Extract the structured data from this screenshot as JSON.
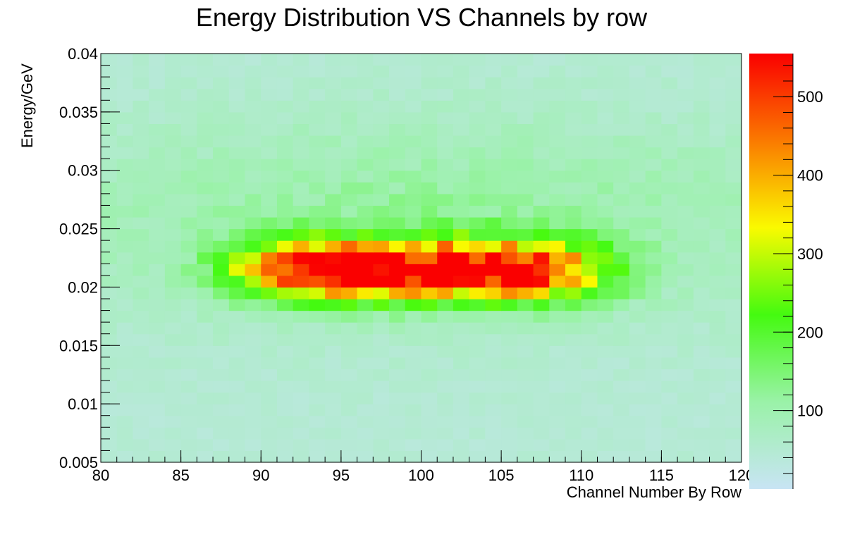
{
  "chart_data": {
    "type": "heatmap",
    "title": "Energy Distribution VS Channels by row",
    "xlabel": "Channel Number By Row",
    "ylabel": "Energy/GeV",
    "xlim": [
      80,
      120
    ],
    "ylim": [
      0.005,
      0.04
    ],
    "x_bins": 40,
    "y_bins": 35,
    "x_ticks": [
      "80",
      "85",
      "90",
      "95",
      "100",
      "105",
      "110",
      "115",
      "120"
    ],
    "y_ticks": [
      "0.005",
      "0.01",
      "0.015",
      "0.02",
      "0.025",
      "0.03",
      "0.035",
      "0.04"
    ],
    "z_ticks": [
      "100",
      "200",
      "300",
      "400",
      "500"
    ],
    "zlim": [
      0,
      555
    ],
    "peak": {
      "x_center": 100,
      "x_sigma": 9.5,
      "y_center": 0.0215,
      "y_sigma": 0.0018,
      "amplitude": 540
    },
    "background_level": 45,
    "palette": [
      "#c8e4f4",
      "#9af2a8",
      "#44fa10",
      "#fafa00",
      "#fa7a00",
      "#fa0000"
    ]
  }
}
